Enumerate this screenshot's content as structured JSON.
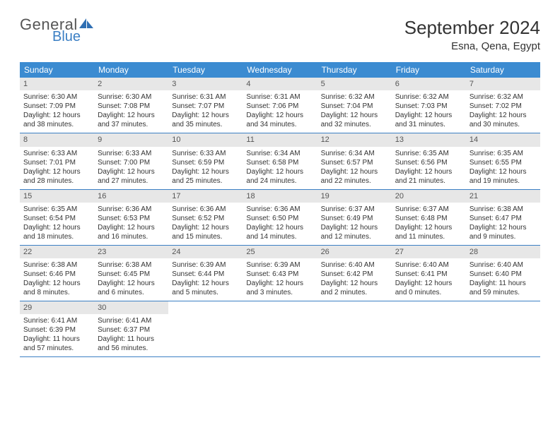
{
  "logo": {
    "line1": "General",
    "line2": "Blue"
  },
  "title": "September 2024",
  "location": "Esna, Qena, Egypt",
  "header_bg": "#3b8bd1",
  "daynum_bg": "#e7e7e7",
  "border_color": "#3b7fc4",
  "day_headers": [
    "Sunday",
    "Monday",
    "Tuesday",
    "Wednesday",
    "Thursday",
    "Friday",
    "Saturday"
  ],
  "weeks": [
    [
      {
        "n": "1",
        "sr": "Sunrise: 6:30 AM",
        "ss": "Sunset: 7:09 PM",
        "d1": "Daylight: 12 hours",
        "d2": "and 38 minutes."
      },
      {
        "n": "2",
        "sr": "Sunrise: 6:30 AM",
        "ss": "Sunset: 7:08 PM",
        "d1": "Daylight: 12 hours",
        "d2": "and 37 minutes."
      },
      {
        "n": "3",
        "sr": "Sunrise: 6:31 AM",
        "ss": "Sunset: 7:07 PM",
        "d1": "Daylight: 12 hours",
        "d2": "and 35 minutes."
      },
      {
        "n": "4",
        "sr": "Sunrise: 6:31 AM",
        "ss": "Sunset: 7:06 PM",
        "d1": "Daylight: 12 hours",
        "d2": "and 34 minutes."
      },
      {
        "n": "5",
        "sr": "Sunrise: 6:32 AM",
        "ss": "Sunset: 7:04 PM",
        "d1": "Daylight: 12 hours",
        "d2": "and 32 minutes."
      },
      {
        "n": "6",
        "sr": "Sunrise: 6:32 AM",
        "ss": "Sunset: 7:03 PM",
        "d1": "Daylight: 12 hours",
        "d2": "and 31 minutes."
      },
      {
        "n": "7",
        "sr": "Sunrise: 6:32 AM",
        "ss": "Sunset: 7:02 PM",
        "d1": "Daylight: 12 hours",
        "d2": "and 30 minutes."
      }
    ],
    [
      {
        "n": "8",
        "sr": "Sunrise: 6:33 AM",
        "ss": "Sunset: 7:01 PM",
        "d1": "Daylight: 12 hours",
        "d2": "and 28 minutes."
      },
      {
        "n": "9",
        "sr": "Sunrise: 6:33 AM",
        "ss": "Sunset: 7:00 PM",
        "d1": "Daylight: 12 hours",
        "d2": "and 27 minutes."
      },
      {
        "n": "10",
        "sr": "Sunrise: 6:33 AM",
        "ss": "Sunset: 6:59 PM",
        "d1": "Daylight: 12 hours",
        "d2": "and 25 minutes."
      },
      {
        "n": "11",
        "sr": "Sunrise: 6:34 AM",
        "ss": "Sunset: 6:58 PM",
        "d1": "Daylight: 12 hours",
        "d2": "and 24 minutes."
      },
      {
        "n": "12",
        "sr": "Sunrise: 6:34 AM",
        "ss": "Sunset: 6:57 PM",
        "d1": "Daylight: 12 hours",
        "d2": "and 22 minutes."
      },
      {
        "n": "13",
        "sr": "Sunrise: 6:35 AM",
        "ss": "Sunset: 6:56 PM",
        "d1": "Daylight: 12 hours",
        "d2": "and 21 minutes."
      },
      {
        "n": "14",
        "sr": "Sunrise: 6:35 AM",
        "ss": "Sunset: 6:55 PM",
        "d1": "Daylight: 12 hours",
        "d2": "and 19 minutes."
      }
    ],
    [
      {
        "n": "15",
        "sr": "Sunrise: 6:35 AM",
        "ss": "Sunset: 6:54 PM",
        "d1": "Daylight: 12 hours",
        "d2": "and 18 minutes."
      },
      {
        "n": "16",
        "sr": "Sunrise: 6:36 AM",
        "ss": "Sunset: 6:53 PM",
        "d1": "Daylight: 12 hours",
        "d2": "and 16 minutes."
      },
      {
        "n": "17",
        "sr": "Sunrise: 6:36 AM",
        "ss": "Sunset: 6:52 PM",
        "d1": "Daylight: 12 hours",
        "d2": "and 15 minutes."
      },
      {
        "n": "18",
        "sr": "Sunrise: 6:36 AM",
        "ss": "Sunset: 6:50 PM",
        "d1": "Daylight: 12 hours",
        "d2": "and 14 minutes."
      },
      {
        "n": "19",
        "sr": "Sunrise: 6:37 AM",
        "ss": "Sunset: 6:49 PM",
        "d1": "Daylight: 12 hours",
        "d2": "and 12 minutes."
      },
      {
        "n": "20",
        "sr": "Sunrise: 6:37 AM",
        "ss": "Sunset: 6:48 PM",
        "d1": "Daylight: 12 hours",
        "d2": "and 11 minutes."
      },
      {
        "n": "21",
        "sr": "Sunrise: 6:38 AM",
        "ss": "Sunset: 6:47 PM",
        "d1": "Daylight: 12 hours",
        "d2": "and 9 minutes."
      }
    ],
    [
      {
        "n": "22",
        "sr": "Sunrise: 6:38 AM",
        "ss": "Sunset: 6:46 PM",
        "d1": "Daylight: 12 hours",
        "d2": "and 8 minutes."
      },
      {
        "n": "23",
        "sr": "Sunrise: 6:38 AM",
        "ss": "Sunset: 6:45 PM",
        "d1": "Daylight: 12 hours",
        "d2": "and 6 minutes."
      },
      {
        "n": "24",
        "sr": "Sunrise: 6:39 AM",
        "ss": "Sunset: 6:44 PM",
        "d1": "Daylight: 12 hours",
        "d2": "and 5 minutes."
      },
      {
        "n": "25",
        "sr": "Sunrise: 6:39 AM",
        "ss": "Sunset: 6:43 PM",
        "d1": "Daylight: 12 hours",
        "d2": "and 3 minutes."
      },
      {
        "n": "26",
        "sr": "Sunrise: 6:40 AM",
        "ss": "Sunset: 6:42 PM",
        "d1": "Daylight: 12 hours",
        "d2": "and 2 minutes."
      },
      {
        "n": "27",
        "sr": "Sunrise: 6:40 AM",
        "ss": "Sunset: 6:41 PM",
        "d1": "Daylight: 12 hours",
        "d2": "and 0 minutes."
      },
      {
        "n": "28",
        "sr": "Sunrise: 6:40 AM",
        "ss": "Sunset: 6:40 PM",
        "d1": "Daylight: 11 hours",
        "d2": "and 59 minutes."
      }
    ],
    [
      {
        "n": "29",
        "sr": "Sunrise: 6:41 AM",
        "ss": "Sunset: 6:39 PM",
        "d1": "Daylight: 11 hours",
        "d2": "and 57 minutes."
      },
      {
        "n": "30",
        "sr": "Sunrise: 6:41 AM",
        "ss": "Sunset: 6:37 PM",
        "d1": "Daylight: 11 hours",
        "d2": "and 56 minutes."
      },
      null,
      null,
      null,
      null,
      null
    ]
  ]
}
